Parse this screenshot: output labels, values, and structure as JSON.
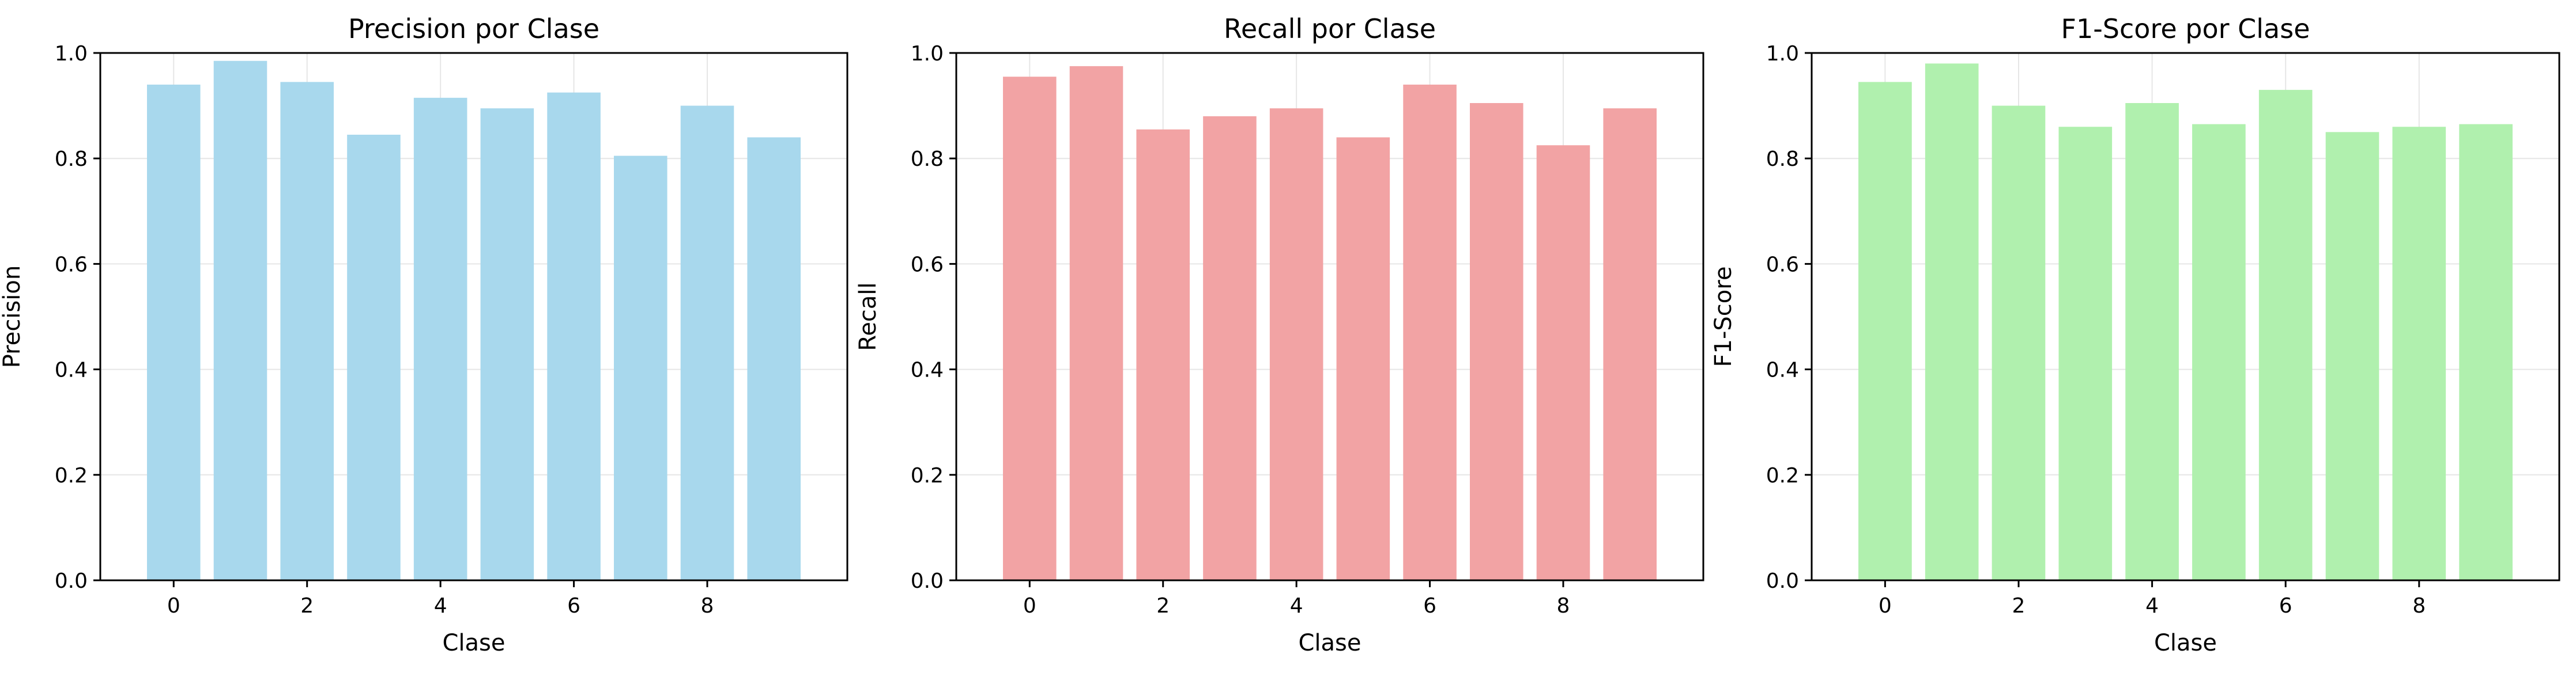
{
  "chart_data": [
    {
      "type": "bar",
      "title": "Precision por Clase",
      "xlabel": "Clase",
      "ylabel": "Precision",
      "categories": [
        0,
        1,
        2,
        3,
        4,
        5,
        6,
        7,
        8,
        9
      ],
      "values": [
        0.94,
        0.985,
        0.945,
        0.845,
        0.915,
        0.895,
        0.925,
        0.805,
        0.9,
        0.84
      ],
      "color": "#a8d8ed",
      "xticks": [
        0,
        2,
        4,
        6,
        8
      ],
      "yticks": [
        0.0,
        0.2,
        0.4,
        0.6,
        0.8,
        1.0
      ],
      "ylim": [
        0,
        1.0
      ],
      "grid": true
    },
    {
      "type": "bar",
      "title": "Recall por Clase",
      "xlabel": "Clase",
      "ylabel": "Recall",
      "categories": [
        0,
        1,
        2,
        3,
        4,
        5,
        6,
        7,
        8,
        9
      ],
      "values": [
        0.955,
        0.975,
        0.855,
        0.88,
        0.895,
        0.84,
        0.94,
        0.905,
        0.825,
        0.895
      ],
      "color": "#f2a3a4",
      "xticks": [
        0,
        2,
        4,
        6,
        8
      ],
      "yticks": [
        0.0,
        0.2,
        0.4,
        0.6,
        0.8,
        1.0
      ],
      "ylim": [
        0,
        1.0
      ],
      "grid": true
    },
    {
      "type": "bar",
      "title": "F1-Score por Clase",
      "xlabel": "Clase",
      "ylabel": "F1-Score",
      "categories": [
        0,
        1,
        2,
        3,
        4,
        5,
        6,
        7,
        8,
        9
      ],
      "values": [
        0.945,
        0.98,
        0.9,
        0.86,
        0.905,
        0.865,
        0.93,
        0.85,
        0.86,
        0.865
      ],
      "color": "#b0f0ae",
      "xticks": [
        0,
        2,
        4,
        6,
        8
      ],
      "yticks": [
        0.0,
        0.2,
        0.4,
        0.6,
        0.8,
        1.0
      ],
      "ylim": [
        0,
        1.0
      ],
      "grid": true
    }
  ]
}
